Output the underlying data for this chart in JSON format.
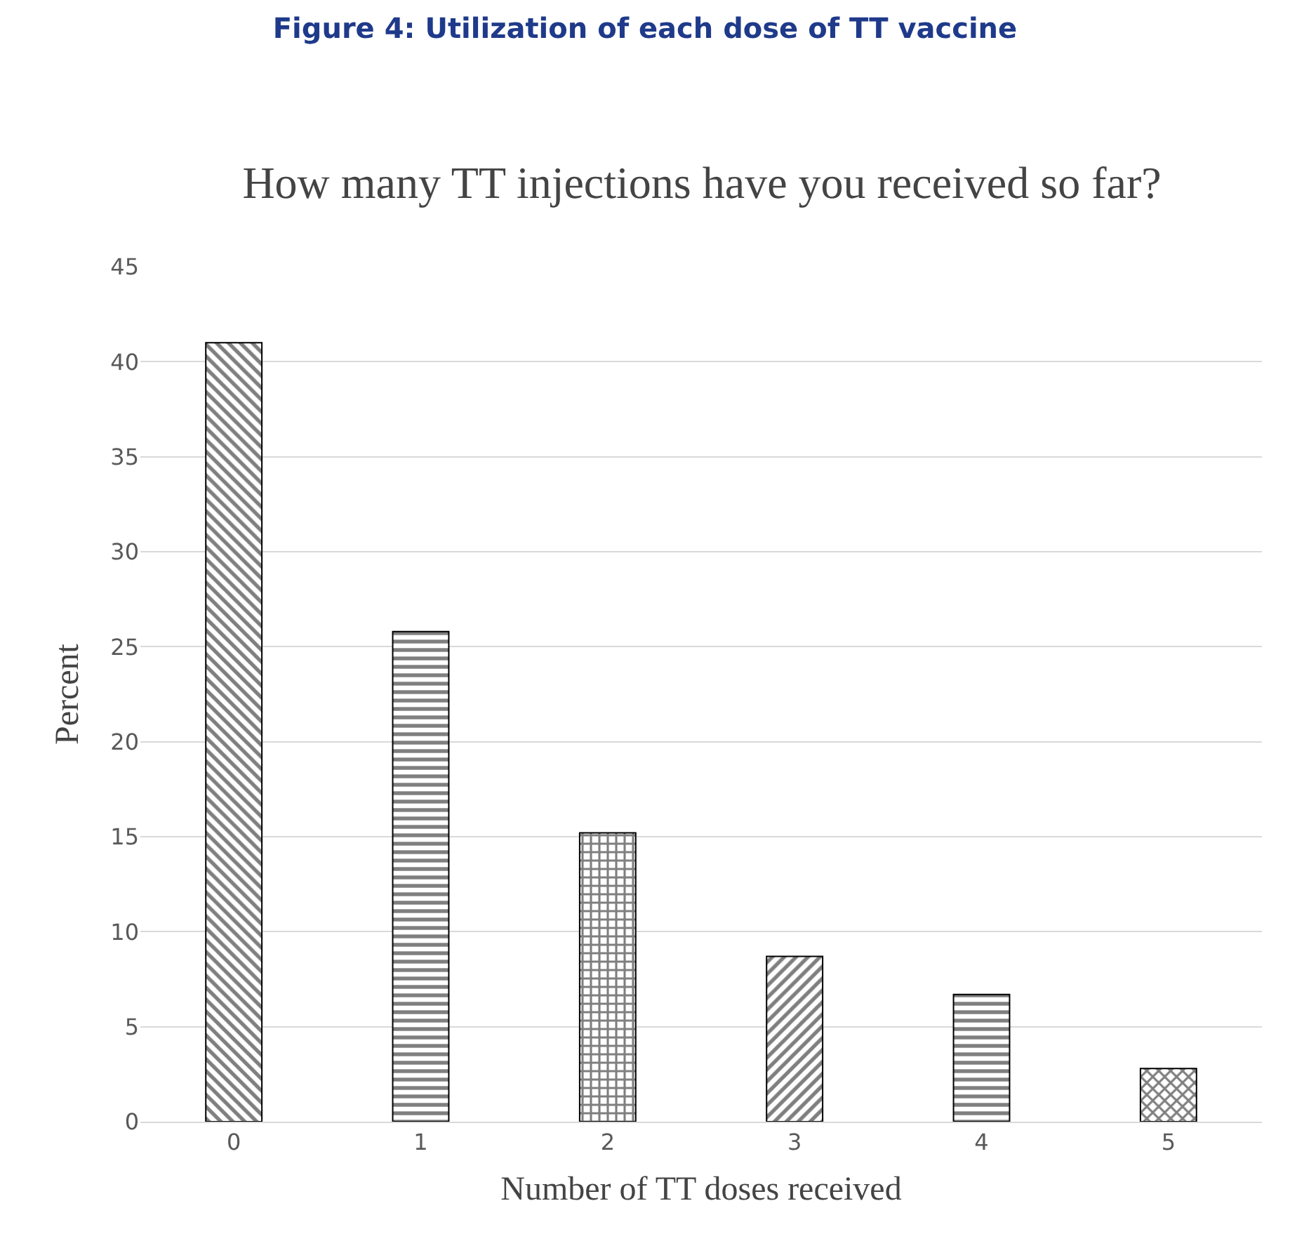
{
  "chart_data": {
    "type": "bar",
    "title": "Figure 4: Utilization of each dose of TT vaccine",
    "subtitle": "How many TT injections have you received so far?",
    "xlabel": "Number of TT doses received",
    "ylabel": "Percent",
    "categories": [
      "0",
      "1",
      "2",
      "3",
      "4",
      "5"
    ],
    "values": [
      41.0,
      25.8,
      15.2,
      8.7,
      6.7,
      2.8
    ],
    "color": "#000000",
    "ylim": [
      0,
      45
    ],
    "yticks": [
      0,
      5,
      10,
      15,
      20,
      25,
      30,
      35,
      40,
      45
    ],
    "grid": "y",
    "legend": false
  }
}
